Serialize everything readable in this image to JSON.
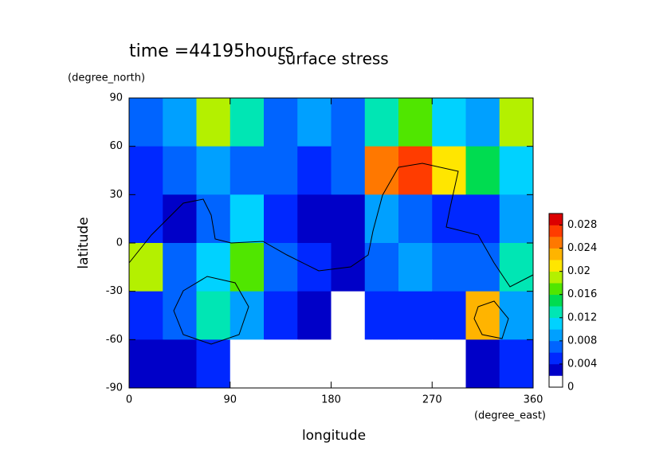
{
  "chart_data": {
    "type": "contour",
    "title": "surface stress",
    "subtitle": "time =44195hours",
    "x_label": "longitude",
    "x_unit": "(degree_east)",
    "y_label": "latitude",
    "y_unit": "(degree_north)",
    "x": [
      15,
      45,
      75,
      105,
      135,
      165,
      195,
      225,
      255,
      285,
      315,
      345
    ],
    "y": [
      75,
      45,
      15,
      -15,
      -45,
      -75
    ],
    "z": [
      [
        0.006,
        0.008,
        0.018,
        0.012,
        0.006,
        0.008,
        0.006,
        0.012,
        0.016,
        0.01,
        0.008,
        0.018
      ],
      [
        0.004,
        0.006,
        0.008,
        0.006,
        0.006,
        0.004,
        0.006,
        0.024,
        0.026,
        0.02,
        0.014,
        0.01
      ],
      [
        0.004,
        0.003,
        0.006,
        0.01,
        0.004,
        0.002,
        0.003,
        0.008,
        0.006,
        0.004,
        0.004,
        0.008
      ],
      [
        0.018,
        0.006,
        0.01,
        0.016,
        0.006,
        0.004,
        0.002,
        0.006,
        0.008,
        0.006,
        0.006,
        0.012
      ],
      [
        0.004,
        0.006,
        0.012,
        0.008,
        0.004,
        0.002,
        0.001,
        0.004,
        0.004,
        0.004,
        0.022,
        0.008
      ],
      [
        0.002,
        0.002,
        0.004,
        0,
        0,
        0,
        0,
        0,
        0,
        0,
        0.002,
        0.004
      ]
    ],
    "xlim": [
      0,
      360
    ],
    "ylim": [
      -90,
      90
    ],
    "xticks": [
      0,
      90,
      180,
      270,
      360
    ],
    "yticks": [
      -90,
      -60,
      -30,
      0,
      30,
      60,
      90
    ],
    "clim": [
      0,
      0.03
    ],
    "cticks": [
      0,
      0.004,
      0.008,
      0.012,
      0.016,
      0.02,
      0.024,
      0.028
    ],
    "colors": [
      "#ffffff",
      "#0000c8",
      "#0028ff",
      "#0064ff",
      "#00a0ff",
      "#00d2ff",
      "#00e6b4",
      "#00dc50",
      "#50e600",
      "#b4f000",
      "#ffe600",
      "#ffb400",
      "#ff7800",
      "#ff3c00",
      "#dc0000"
    ]
  }
}
